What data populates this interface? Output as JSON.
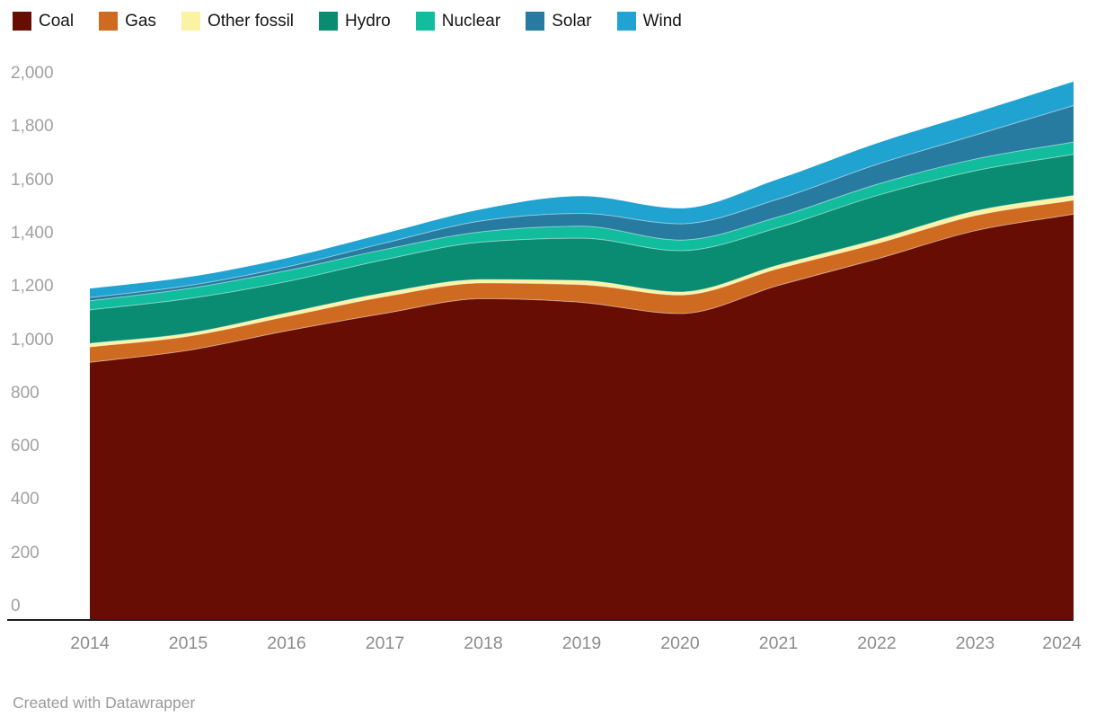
{
  "legend": {
    "items": [
      {
        "label": "Coal",
        "color": "#680d04"
      },
      {
        "label": "Gas",
        "color": "#cf6a21"
      },
      {
        "label": "Other fossil",
        "color": "#fbf3a3"
      },
      {
        "label": "Hydro",
        "color": "#0a8c73"
      },
      {
        "label": "Nuclear",
        "color": "#11bd9d"
      },
      {
        "label": "Solar",
        "color": "#277aa0"
      },
      {
        "label": "Wind",
        "color": "#21a3d1"
      }
    ]
  },
  "chart_data": {
    "type": "area",
    "stacked": true,
    "title": "",
    "xlabel": "",
    "ylabel": "",
    "grid": false,
    "legend_position": "top",
    "x": [
      2014,
      2015,
      2016,
      2017,
      2018,
      2019,
      2020,
      2021,
      2022,
      2023,
      2024
    ],
    "series": [
      {
        "name": "Coal",
        "color": "#680d04",
        "values": [
          967,
          1012,
          1085,
          1151,
          1206,
          1192,
          1150,
          1256,
          1355,
          1461,
          1523
        ]
      },
      {
        "name": "Gas",
        "color": "#cf6a21",
        "values": [
          58,
          53,
          54,
          63,
          59,
          67,
          70,
          63,
          58,
          57,
          53
        ]
      },
      {
        "name": "Other fossil",
        "color": "#fbf3a3",
        "values": [
          13,
          11,
          13,
          14,
          13,
          15,
          11,
          13,
          15,
          17,
          17
        ]
      },
      {
        "name": "Hydro",
        "color": "#0a8c73",
        "values": [
          126,
          130,
          118,
          125,
          141,
          159,
          155,
          141,
          165,
          151,
          155
        ]
      },
      {
        "name": "Nuclear",
        "color": "#11bd9d",
        "values": [
          34,
          38,
          41,
          38,
          39,
          45,
          40,
          40,
          42,
          44,
          46
        ]
      },
      {
        "name": "Solar",
        "color": "#277aa0",
        "values": [
          12,
          11,
          14,
          24,
          41,
          48,
          61,
          67,
          75,
          90,
          137
        ]
      },
      {
        "name": "Wind",
        "color": "#21a3d1",
        "values": [
          34,
          32,
          33,
          36,
          44,
          65,
          58,
          75,
          79,
          84,
          90
        ]
      }
    ],
    "yticks": [
      0,
      200,
      400,
      600,
      800,
      1000,
      1200,
      1400,
      1600,
      1800,
      2000
    ],
    "ylim": [
      0,
      2000
    ],
    "axis_line_color": "#1d1d1d"
  },
  "footer": {
    "credit": "Created with Datawrapper"
  }
}
